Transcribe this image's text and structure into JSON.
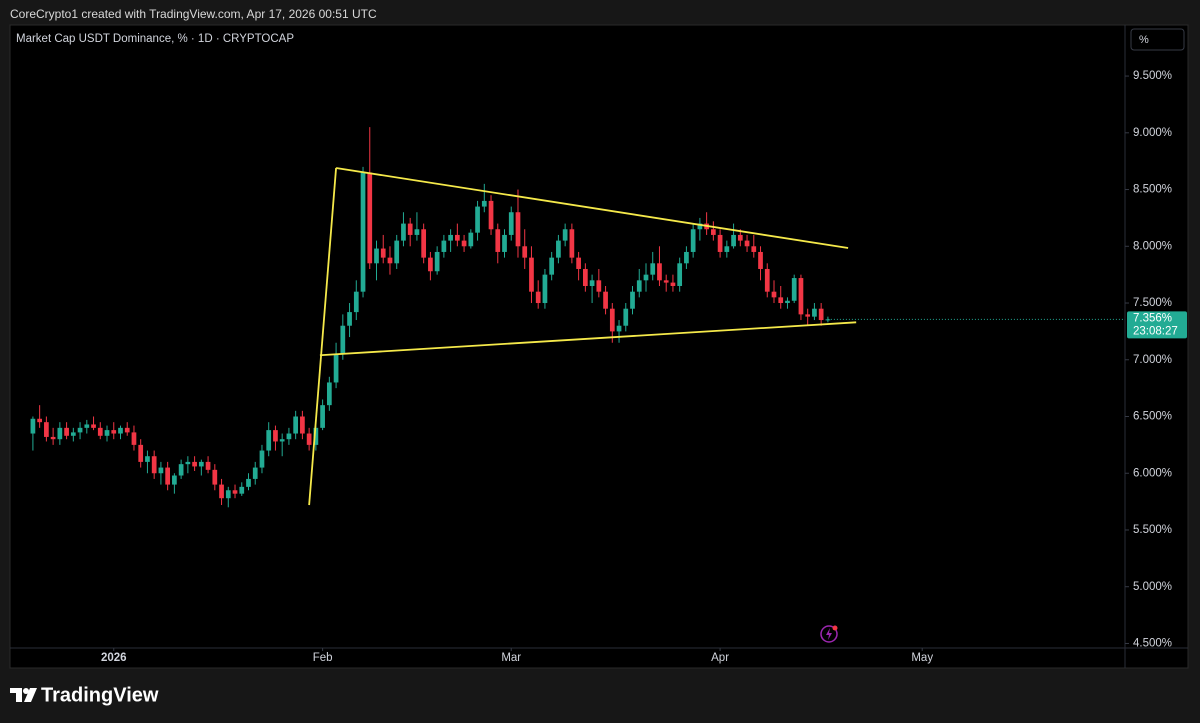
{
  "header": "CoreCrypto1 created with TradingView.com, Apr 17, 2026 00:51 UTC",
  "unit_button": "%",
  "logo": "TradingView",
  "chart_data": {
    "type": "candlestick",
    "title": "Market Cap USDT Dominance, % · 1D · CRYPTOCAP",
    "up_color": "#22ab94",
    "down_color": "#f23645",
    "open": [
      6.35,
      6.48,
      6.45,
      6.32,
      6.3,
      6.4,
      6.33,
      6.36,
      6.4,
      6.43,
      6.4,
      6.33,
      6.38,
      6.35,
      6.4,
      6.36,
      6.25,
      6.1,
      6.15,
      6.0,
      6.05,
      5.9,
      5.98,
      6.08,
      6.1,
      6.06,
      6.1,
      6.03,
      5.9,
      5.78,
      5.85,
      5.82,
      5.88,
      5.95,
      6.05,
      6.2,
      6.38,
      6.28,
      6.3,
      6.35,
      6.5,
      6.35,
      6.25,
      6.4,
      6.6,
      6.8,
      7.05,
      7.3,
      7.42,
      7.6,
      8.65,
      7.85,
      7.98,
      7.9,
      7.85,
      8.05,
      8.2,
      8.1,
      8.15,
      7.9,
      7.78,
      7.95,
      8.05,
      8.1,
      8.05,
      8.0,
      8.12,
      8.35,
      8.4,
      8.15,
      7.95,
      8.1,
      8.3,
      8.0,
      7.9,
      7.6,
      7.5,
      7.75,
      7.9,
      8.05,
      8.15,
      7.9,
      7.8,
      7.65,
      7.7,
      7.6,
      7.45,
      7.25,
      7.3,
      7.45,
      7.6,
      7.7,
      7.75,
      7.85,
      7.7,
      7.68,
      7.65,
      7.85,
      7.95,
      8.15,
      8.2,
      8.15,
      8.1,
      7.95,
      8.0,
      8.1,
      8.05,
      8.0,
      7.95,
      7.8,
      7.6,
      7.55,
      7.5,
      7.52,
      7.72,
      7.4,
      7.38,
      7.45,
      7.35
    ],
    "high": [
      6.5,
      6.6,
      6.5,
      6.4,
      6.45,
      6.45,
      6.4,
      6.45,
      6.47,
      6.5,
      6.45,
      6.42,
      6.45,
      6.42,
      6.45,
      6.42,
      6.3,
      6.2,
      6.2,
      6.1,
      6.1,
      6.0,
      6.12,
      6.15,
      6.15,
      6.12,
      6.15,
      6.08,
      5.95,
      5.88,
      5.9,
      5.92,
      6.0,
      6.1,
      6.25,
      6.45,
      6.42,
      6.35,
      6.4,
      6.55,
      6.55,
      6.4,
      6.42,
      6.65,
      6.85,
      7.15,
      7.4,
      7.5,
      7.7,
      8.7,
      9.05,
      8.05,
      8.1,
      8.0,
      8.1,
      8.3,
      8.25,
      8.3,
      8.2,
      7.95,
      8.0,
      8.1,
      8.15,
      8.2,
      8.1,
      8.15,
      8.4,
      8.55,
      8.45,
      8.2,
      8.15,
      8.35,
      8.5,
      8.15,
      8.0,
      7.7,
      7.8,
      7.95,
      8.1,
      8.2,
      8.2,
      7.95,
      7.85,
      7.75,
      7.8,
      7.65,
      7.5,
      7.35,
      7.5,
      7.65,
      7.8,
      7.85,
      7.95,
      8.0,
      7.75,
      7.75,
      7.9,
      8.0,
      8.2,
      8.25,
      8.3,
      8.22,
      8.15,
      8.05,
      8.2,
      8.15,
      8.1,
      8.1,
      8.0,
      7.85,
      7.7,
      7.65,
      7.55,
      7.75,
      7.75,
      7.45,
      7.5,
      7.5,
      7.38
    ],
    "low": [
      6.2,
      6.4,
      6.28,
      6.25,
      6.25,
      6.3,
      6.28,
      6.3,
      6.35,
      6.38,
      6.3,
      6.28,
      6.3,
      6.3,
      6.33,
      6.2,
      6.05,
      6.0,
      5.95,
      5.9,
      5.85,
      5.82,
      5.95,
      6.0,
      6.02,
      5.98,
      6.0,
      5.85,
      5.72,
      5.7,
      5.78,
      5.8,
      5.85,
      5.9,
      6.0,
      6.15,
      6.2,
      6.15,
      6.25,
      6.3,
      6.3,
      6.2,
      6.2,
      6.38,
      6.55,
      6.75,
      7.0,
      7.2,
      7.35,
      7.55,
      7.8,
      7.7,
      7.85,
      7.75,
      7.8,
      8.0,
      8.0,
      8.05,
      7.85,
      7.7,
      7.75,
      7.9,
      7.95,
      8.0,
      7.95,
      7.98,
      8.05,
      8.3,
      8.1,
      7.85,
      7.9,
      8.05,
      7.9,
      7.8,
      7.5,
      7.45,
      7.45,
      7.7,
      7.85,
      8.0,
      7.85,
      7.7,
      7.6,
      7.5,
      7.55,
      7.4,
      7.15,
      7.15,
      7.25,
      7.4,
      7.55,
      7.6,
      7.7,
      7.65,
      7.6,
      7.6,
      7.6,
      7.8,
      7.9,
      8.05,
      8.1,
      8.05,
      7.9,
      7.9,
      7.98,
      8.0,
      7.95,
      7.9,
      7.7,
      7.55,
      7.5,
      7.45,
      7.45,
      7.5,
      7.35,
      7.3,
      7.35,
      7.3,
      7.33
    ],
    "close": [
      6.48,
      6.45,
      6.32,
      6.3,
      6.4,
      6.33,
      6.36,
      6.4,
      6.43,
      6.4,
      6.33,
      6.38,
      6.35,
      6.4,
      6.36,
      6.25,
      6.1,
      6.15,
      6.0,
      6.05,
      5.9,
      5.98,
      6.08,
      6.1,
      6.06,
      6.1,
      6.03,
      5.9,
      5.78,
      5.85,
      5.82,
      5.88,
      5.95,
      6.05,
      6.2,
      6.38,
      6.28,
      6.3,
      6.35,
      6.5,
      6.35,
      6.25,
      6.4,
      6.6,
      6.8,
      7.05,
      7.3,
      7.42,
      7.6,
      8.65,
      7.85,
      7.98,
      7.9,
      7.85,
      8.05,
      8.2,
      8.1,
      8.15,
      7.9,
      7.78,
      7.95,
      8.05,
      8.1,
      8.05,
      8.0,
      8.12,
      8.35,
      8.4,
      8.15,
      7.95,
      8.1,
      8.3,
      8.0,
      7.9,
      7.6,
      7.5,
      7.75,
      7.9,
      8.05,
      8.15,
      7.9,
      7.8,
      7.65,
      7.7,
      7.6,
      7.45,
      7.25,
      7.3,
      7.45,
      7.6,
      7.7,
      7.75,
      7.85,
      7.7,
      7.68,
      7.65,
      7.85,
      7.95,
      8.15,
      8.2,
      8.15,
      8.1,
      7.95,
      8.0,
      8.1,
      8.05,
      8.0,
      7.95,
      7.8,
      7.6,
      7.55,
      7.5,
      7.52,
      7.72,
      7.4,
      7.38,
      7.45,
      7.35,
      7.356
    ],
    "xlim": [
      -3.4,
      162.1
    ],
    "xticks": [
      {
        "value": 12,
        "label": "2026"
      },
      {
        "value": 43,
        "label": "Feb"
      },
      {
        "value": 71,
        "label": "Mar"
      },
      {
        "value": 102,
        "label": "Apr"
      },
      {
        "value": 132,
        "label": "May"
      }
    ],
    "ylim": [
      4.46,
      9.95
    ],
    "yticks": [
      {
        "value": 4.5,
        "label": "4.500%"
      },
      {
        "value": 5.0,
        "label": "5.000%"
      },
      {
        "value": 5.5,
        "label": "5.500%"
      },
      {
        "value": 6.0,
        "label": "6.000%"
      },
      {
        "value": 6.5,
        "label": "6.500%"
      },
      {
        "value": 7.0,
        "label": "7.000%"
      },
      {
        "value": 7.5,
        "label": "7.500%"
      },
      {
        "value": 8.0,
        "label": "8.000%"
      },
      {
        "value": 8.5,
        "label": "8.500%"
      },
      {
        "value": 9.0,
        "label": "9.000%"
      },
      {
        "value": 9.5,
        "label": "9.500%"
      }
    ],
    "drawings": [
      {
        "color": "#f5e94a",
        "x": [
          41.0,
          45.0
        ],
        "y": [
          5.72,
          8.69
        ]
      },
      {
        "color": "#f5e94a",
        "x": [
          45.0,
          121.0
        ],
        "y": [
          8.69,
          7.985
        ]
      },
      {
        "color": "#f5e94a",
        "x": [
          42.6,
          122.2
        ],
        "y": [
          7.04,
          7.33
        ]
      }
    ],
    "price_label": "7.356%",
    "countdown": "23:08:27"
  }
}
